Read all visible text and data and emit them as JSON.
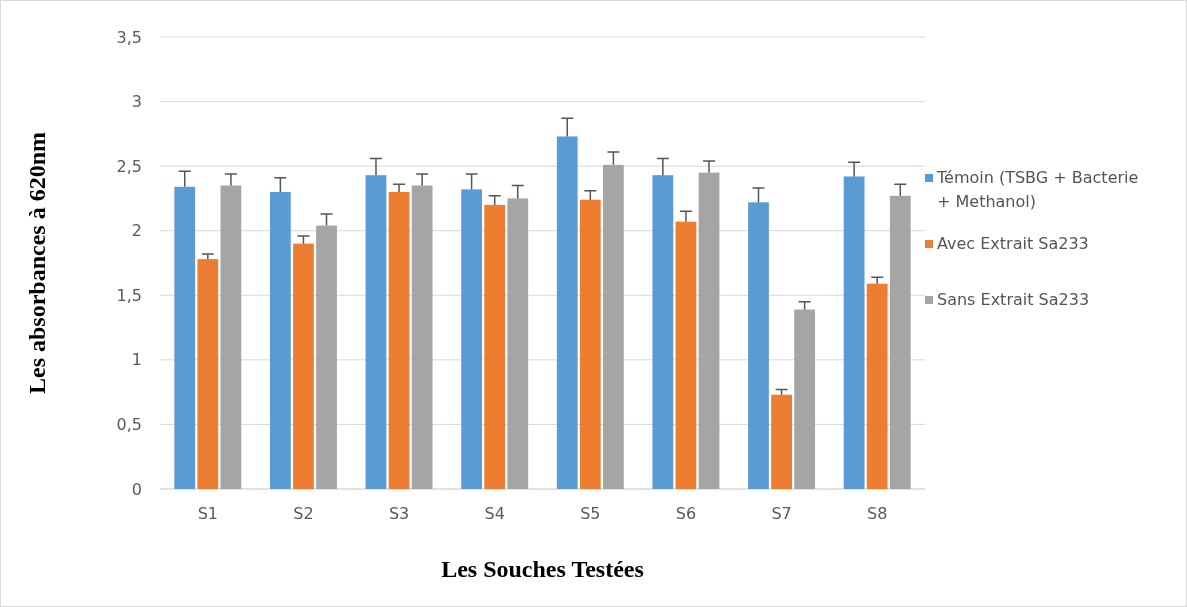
{
  "chart_data": {
    "type": "bar",
    "xlabel": "Les Souches Testées",
    "ylabel": "Les absorbances à 620nm",
    "categories": [
      "S1",
      "S2",
      "S3",
      "S4",
      "S5",
      "S6",
      "S7",
      "S8"
    ],
    "series": [
      {
        "name": "Témoin (TSBG + Bacterie + Methanol)",
        "color": "#5b9bd5",
        "values": [
          2.34,
          2.3,
          2.43,
          2.32,
          2.73,
          2.43,
          2.22,
          2.42
        ],
        "errors": [
          [
            2.34,
            2.46
          ],
          [
            2.3,
            2.41
          ],
          [
            2.43,
            2.56
          ],
          [
            2.32,
            2.44
          ],
          [
            2.73,
            2.87
          ],
          [
            2.43,
            2.56
          ],
          [
            2.22,
            2.33
          ],
          [
            2.42,
            2.53
          ]
        ]
      },
      {
        "name": "Avec Extrait Sa233",
        "color": "#ed7d31",
        "values": [
          1.78,
          1.9,
          2.3,
          2.2,
          2.24,
          2.07,
          0.73,
          1.59
        ],
        "errors": [
          [
            1.78,
            1.82
          ],
          [
            1.9,
            1.96
          ],
          [
            2.3,
            2.36
          ],
          [
            2.2,
            2.27
          ],
          [
            2.24,
            2.31
          ],
          [
            2.07,
            2.15
          ],
          [
            0.73,
            0.77
          ],
          [
            1.59,
            1.64
          ]
        ]
      },
      {
        "name": "Sans Extrait Sa233",
        "color": "#a5a5a5",
        "values": [
          2.35,
          2.04,
          2.35,
          2.25,
          2.51,
          2.45,
          1.39,
          2.27
        ],
        "errors": [
          [
            2.35,
            2.44
          ],
          [
            2.04,
            2.13
          ],
          [
            2.35,
            2.44
          ],
          [
            2.25,
            2.35
          ],
          [
            2.51,
            2.61
          ],
          [
            2.45,
            2.54
          ],
          [
            1.39,
            1.45
          ],
          [
            2.27,
            2.36
          ]
        ]
      }
    ],
    "ylim": [
      0,
      3.5
    ],
    "yticks": [
      0,
      {
        "value": 0.5,
        "label": "0,5"
      },
      1,
      {
        "value": 1.5,
        "label": "1,5"
      },
      2,
      {
        "value": 2.5,
        "label": "2,5"
      },
      3,
      {
        "value": 3.5,
        "label": "3,5"
      }
    ],
    "grid": "y",
    "legend": "right"
  }
}
